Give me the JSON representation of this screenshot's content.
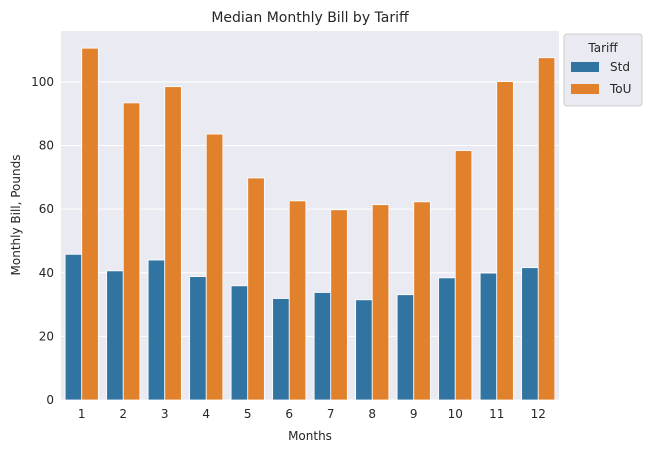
{
  "chart_data": {
    "type": "bar",
    "title": "Median Monthly Bill by Tariff",
    "xlabel": "Months",
    "ylabel": "Monthly Bill, Pounds",
    "categories": [
      "1",
      "2",
      "3",
      "4",
      "5",
      "6",
      "7",
      "8",
      "9",
      "10",
      "11",
      "12"
    ],
    "series": [
      {
        "name": "Std",
        "color": "#3274a1",
        "values": [
          45.8,
          40.6,
          44.0,
          38.8,
          35.9,
          31.9,
          33.8,
          31.5,
          33.1,
          38.4,
          39.9,
          41.6
        ]
      },
      {
        "name": "ToU",
        "color": "#e1812c",
        "values": [
          110.6,
          93.4,
          98.5,
          83.6,
          69.8,
          62.6,
          59.8,
          61.4,
          62.3,
          78.4,
          100.1,
          107.6
        ]
      }
    ],
    "ylim": [
      0,
      116
    ],
    "yticks": [
      0,
      20,
      40,
      60,
      80,
      100
    ],
    "grid": true,
    "legend": {
      "title": "Tariff",
      "placement": "upper-right-outside"
    },
    "background": "#eaeaf2"
  }
}
